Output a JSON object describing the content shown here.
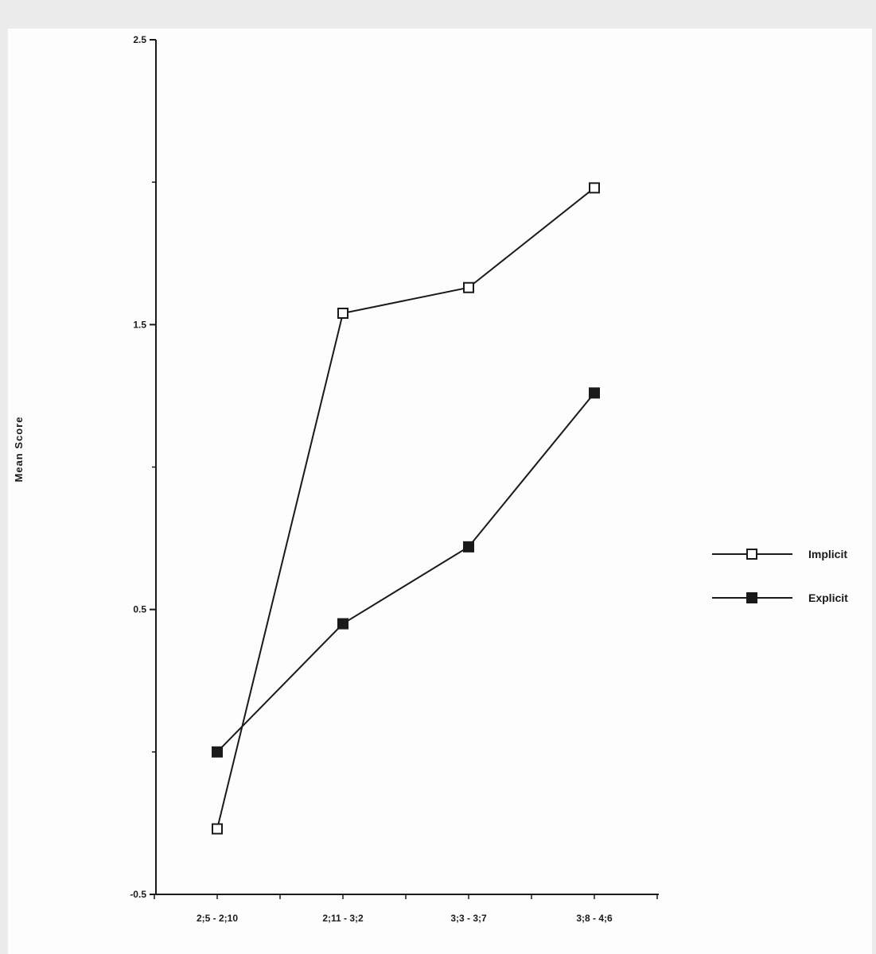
{
  "chart_data": {
    "type": "line",
    "title": "",
    "xlabel": "",
    "ylabel": "Mean Score",
    "categories": [
      "2;5 - 2;10",
      "2;11 - 3;2",
      "3;3 - 3;7",
      "3;8 - 4;6"
    ],
    "yticks": [
      "2.5",
      "1.5",
      "0.5",
      "-0.5"
    ],
    "ylim": [
      -0.5,
      2.5
    ],
    "grid": false,
    "legend_position": "right",
    "series": [
      {
        "name": "Implicit",
        "marker": "open-square",
        "color": "#1a1a1a",
        "values": [
          -0.27,
          1.54,
          1.63,
          1.98
        ]
      },
      {
        "name": "Explicit",
        "marker": "filled-square",
        "color": "#1a1a1a",
        "values": [
          0.0,
          0.45,
          0.72,
          1.26
        ]
      }
    ]
  }
}
